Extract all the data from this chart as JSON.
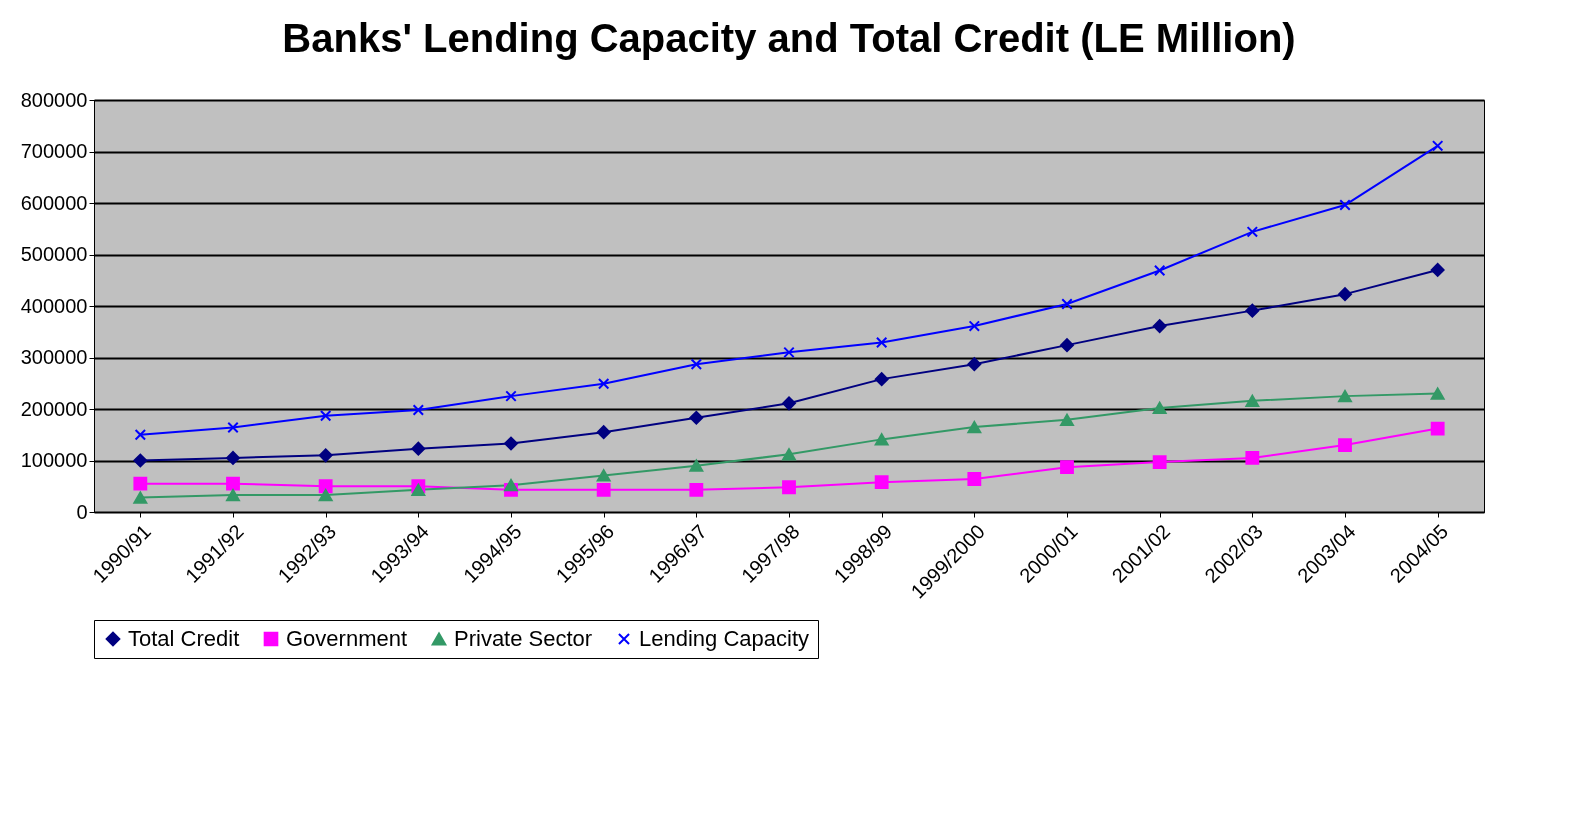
{
  "chart_data": {
    "type": "line",
    "title": "Banks' Lending Capacity and Total Credit (LE Million)",
    "categories": [
      "1990/91",
      "1991/92",
      "1992/93",
      "1993/94",
      "1994/95",
      "1995/96",
      "1996/97",
      "1997/98",
      "1998/99",
      "1999/2000",
      "2000/01",
      "2001/02",
      "2002/03",
      "2003/04",
      "2004/05"
    ],
    "series": [
      {
        "name": "Total Credit",
        "color": "#000080",
        "marker": "diamond",
        "values": [
          100000,
          105000,
          110000,
          123000,
          133000,
          155000,
          183000,
          211000,
          258000,
          287000,
          324000,
          361000,
          391000,
          423000,
          470000
        ]
      },
      {
        "name": "Government",
        "color": "#ff00ff",
        "marker": "square",
        "values": [
          55000,
          55000,
          50000,
          50000,
          43000,
          43000,
          43000,
          48000,
          58000,
          64000,
          87000,
          97000,
          105000,
          130000,
          162000
        ]
      },
      {
        "name": "Private Sector",
        "color": "#339966",
        "marker": "triangle",
        "values": [
          28000,
          33000,
          33000,
          43000,
          52000,
          71000,
          90000,
          112000,
          141000,
          165000,
          179000,
          202000,
          216000,
          225000,
          230000
        ]
      },
      {
        "name": "Lending Capacity",
        "color": "#0000ff",
        "marker": "cross",
        "values": [
          150000,
          164000,
          187000,
          198000,
          225000,
          249000,
          287000,
          310000,
          329000,
          361000,
          404000,
          469000,
          544000,
          596000,
          711000
        ]
      }
    ],
    "ylim": [
      0,
      800000
    ],
    "yticks": [
      0,
      100000,
      200000,
      300000,
      400000,
      500000,
      600000,
      700000,
      800000
    ],
    "grid": "y",
    "legend": "bottom",
    "line_style": "solid"
  }
}
